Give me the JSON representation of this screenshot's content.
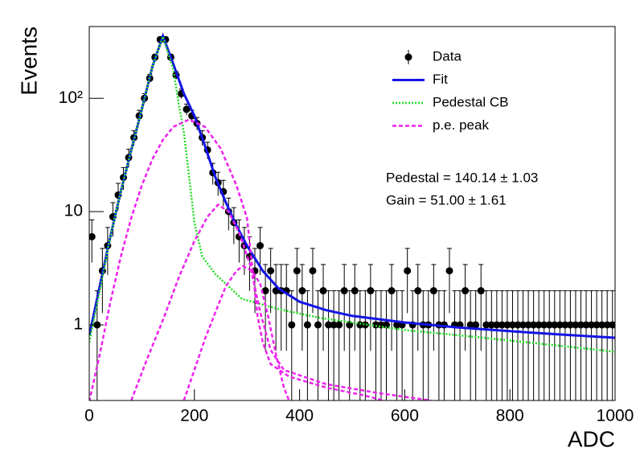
{
  "chart_data": {
    "type": "line",
    "x_label": "ADC",
    "y_label": "Events",
    "xlim": [
      0,
      1000
    ],
    "ylim": [
      0.215,
      430
    ],
    "xticks": [
      0,
      200,
      400,
      600,
      800,
      1000
    ],
    "yticks": [
      1,
      10,
      {
        "value": 100,
        "label": "10²"
      }
    ],
    "log_y": true,
    "legend": "upper right",
    "annotations": [
      "Pedestal = 140.14 ± 1.03",
      "Gain = 51.00 ± 1.61"
    ],
    "series": [
      {
        "name": "Data",
        "type": "errorbar",
        "color": "#000000",
        "x": [
          5,
          15,
          25,
          35,
          45,
          55,
          65,
          75,
          85,
          95,
          105,
          115,
          125,
          135,
          145,
          155,
          165,
          175,
          185,
          195,
          205,
          215,
          225,
          235,
          245,
          255,
          265,
          275,
          285,
          295,
          305,
          315,
          325,
          335,
          345,
          355,
          365,
          375,
          385,
          395,
          405,
          415,
          425,
          435,
          445,
          455,
          465,
          475,
          485,
          495,
          505,
          515,
          525,
          535,
          545,
          555,
          565,
          575,
          585,
          595,
          605,
          615,
          625,
          635,
          645,
          655,
          665,
          675,
          685,
          695,
          705,
          715,
          725,
          735,
          745,
          755,
          765,
          775,
          785,
          795,
          805,
          815,
          825,
          835,
          845,
          855,
          865,
          875,
          885,
          895,
          905,
          915,
          925,
          935,
          945,
          955,
          965,
          975,
          985,
          995
        ],
        "values": [
          6,
          1,
          3,
          5,
          9,
          14,
          20,
          30,
          45,
          70,
          100,
          150,
          230,
          330,
          330,
          230,
          160,
          110,
          80,
          70,
          60,
          45,
          35,
          22,
          18,
          15,
          10,
          8,
          6,
          5,
          4,
          3,
          5,
          2,
          3,
          2,
          2,
          2,
          1,
          3,
          2,
          1,
          3,
          1,
          2,
          1,
          1,
          1,
          2,
          1,
          2,
          1,
          1,
          2,
          1,
          1,
          1,
          2,
          1,
          1,
          3,
          1,
          2,
          1,
          1,
          2,
          1,
          1,
          3,
          1,
          1,
          2,
          1,
          1,
          2,
          1,
          1,
          1,
          1,
          1,
          1,
          1,
          1,
          1,
          1,
          1,
          1,
          1,
          1,
          1,
          1,
          1,
          1,
          1,
          1,
          1,
          1,
          1,
          1,
          1
        ],
        "errors": [
          2.45,
          1,
          1.73,
          2.24,
          3,
          3.74,
          4.47,
          5.48,
          6.71,
          8.37,
          10,
          12.25,
          15.17,
          18.17,
          18.17,
          15.17,
          12.65,
          10.49,
          8.94,
          8.37,
          7.75,
          6.71,
          5.92,
          4.69,
          4.24,
          3.87,
          3.16,
          2.83,
          2.45,
          2.24,
          2,
          1.73,
          2.24,
          1.41,
          1.73,
          1.41,
          1.41,
          1.41,
          1,
          1.73,
          1.41,
          1,
          1.73,
          1,
          1.41,
          1,
          1,
          1,
          1.41,
          1,
          1.41,
          1,
          1,
          1.41,
          1,
          1,
          1,
          1.41,
          1,
          1,
          1.73,
          1,
          1.41,
          1,
          1,
          1.41,
          1,
          1,
          1.73,
          1,
          1,
          1.41,
          1,
          1,
          1.41,
          1,
          1,
          1,
          1,
          1,
          1,
          1,
          1,
          1,
          1,
          1,
          1,
          1,
          1,
          1,
          1,
          1,
          1,
          1,
          1,
          1,
          1,
          1,
          1,
          1
        ]
      },
      {
        "name": "Fit",
        "type": "line",
        "style": "solid",
        "color": "#1414e6",
        "x": [
          0,
          20,
          40,
          60,
          80,
          100,
          120,
          140,
          160,
          180,
          200,
          220,
          240,
          260,
          280,
          300,
          330,
          360,
          400,
          450,
          500,
          600,
          700,
          800,
          900,
          1000
        ],
        "values": [
          0.8,
          2.2,
          6,
          15,
          35,
          80,
          190,
          355,
          200,
          110,
          70,
          38,
          20,
          12,
          7.5,
          5,
          3,
          2.1,
          1.6,
          1.35,
          1.2,
          1.05,
          0.95,
          0.88,
          0.82,
          0.77
        ]
      },
      {
        "name": "Pedestal CB",
        "type": "line",
        "style": "dotted",
        "color": "#22dd22",
        "x": [
          0,
          20,
          40,
          60,
          80,
          100,
          120,
          140,
          160,
          170,
          180,
          190,
          200,
          215,
          240,
          290,
          365,
          440,
          600,
          750,
          1000
        ],
        "values": [
          0.7,
          2,
          6,
          15,
          35,
          80,
          190,
          350,
          180,
          90,
          50,
          20,
          8,
          4,
          2.8,
          1.7,
          1.36,
          1.15,
          0.9,
          0.77,
          0.58
        ]
      },
      {
        "name": "p.e. peak",
        "type": "line",
        "style": "dashed",
        "color": "#ee22ee",
        "x": [
          0,
          20,
          40,
          60,
          80,
          100,
          120,
          140,
          160,
          190,
          220,
          250,
          280,
          300,
          320,
          330,
          345,
          380,
          450,
          520,
          560,
          null,
          80,
          110,
          140,
          170,
          200,
          225,
          245,
          265,
          285,
          305,
          325,
          345,
          370,
          450,
          550,
          650,
          null,
          180,
          200,
          220,
          240,
          260,
          280,
          292,
          310,
          325,
          340,
          355,
          370,
          380
        ],
        "values": [
          0.21,
          0.55,
          1.58,
          4,
          8.8,
          17,
          29,
          43,
          56,
          65,
          56,
          36,
          17,
          8.8,
          1.2,
          0.7,
          0.45,
          0.35,
          0.28,
          0.24,
          0.215,
          null,
          0.215,
          0.5,
          1.1,
          2.6,
          5.5,
          9,
          11.5,
          10,
          6.5,
          3.5,
          1.3,
          0.6,
          0.4,
          0.3,
          0.25,
          0.215,
          null,
          0.215,
          0.4,
          0.75,
          1.3,
          2.2,
          3,
          3.3,
          3,
          2.3,
          1.2,
          0.55,
          0.28,
          0.215
        ]
      }
    ]
  }
}
